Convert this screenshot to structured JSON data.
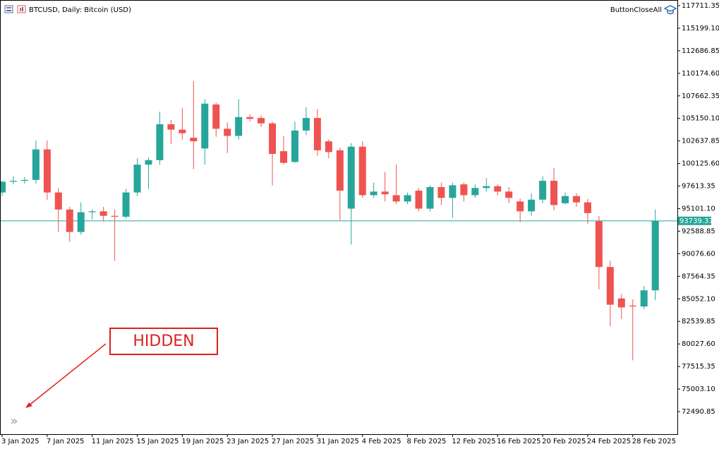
{
  "chart_data": {
    "type": "candlestick",
    "title": "BTCUSD, Daily: Bitcoin (USD)",
    "button": "ButtonCloseAll",
    "annotation": "HIDDEN",
    "scroll_marker": "»",
    "categories": [
      "3 Jan 2025",
      null,
      null,
      null,
      "7 Jan 2025",
      null,
      null,
      null,
      "11 Jan 2025",
      null,
      null,
      null,
      "15 Jan 2025",
      null,
      null,
      null,
      "19 Jan 2025",
      null,
      null,
      null,
      "23 Jan 2025",
      null,
      null,
      null,
      "27 Jan 2025",
      null,
      null,
      null,
      "31 Jan 2025",
      null,
      null,
      null,
      "4 Feb 2025",
      null,
      null,
      null,
      "8 Feb 2025",
      null,
      null,
      null,
      "12 Feb 2025",
      null,
      null,
      null,
      "16 Feb 2025",
      null,
      null,
      null,
      "20 Feb 2025",
      null,
      null,
      null,
      "24 Feb 2025",
      null,
      null,
      null,
      "28 Feb 2025",
      null,
      null
    ],
    "open": [
      96900,
      98100,
      98200,
      98300,
      101700,
      96900,
      95000,
      92500,
      94700,
      94800,
      94300,
      94200,
      96900,
      100000,
      100500,
      104500,
      103900,
      103000,
      101800,
      106700,
      104000,
      103200,
      105300,
      105200,
      104600,
      101500,
      100300,
      103800,
      105200,
      102600,
      101600,
      95100,
      102000,
      96600,
      97000,
      96600,
      95900,
      97100,
      95100,
      97500,
      96300,
      97800,
      96600,
      97400,
      97600,
      97000,
      95900,
      94800,
      96100,
      98200,
      95700,
      96500,
      95800,
      93700,
      88600,
      85100,
      84300,
      84200,
      86000
    ],
    "high": [
      98200,
      98700,
      98600,
      102700,
      102700,
      97400,
      95300,
      95800,
      95000,
      95300,
      95000,
      97300,
      100700,
      100800,
      105900,
      105000,
      106300,
      109300,
      107300,
      106900,
      104700,
      107300,
      105600,
      105500,
      104800,
      103200,
      104800,
      106400,
      106200,
      102800,
      101900,
      102400,
      102600,
      98000,
      99200,
      100000,
      96900,
      97400,
      97700,
      98000,
      98000,
      98000,
      97800,
      98500,
      97800,
      97500,
      96200,
      96800,
      98700,
      99600,
      96900,
      96800,
      96200,
      94300,
      89300,
      85600,
      85000,
      86500,
      95000
    ],
    "low": [
      96500,
      97800,
      97900,
      97900,
      96100,
      92500,
      91400,
      92200,
      93900,
      93700,
      89300,
      94000,
      96500,
      97300,
      100000,
      102300,
      102800,
      99500,
      100000,
      103100,
      101300,
      102800,
      104800,
      104200,
      97700,
      100000,
      100200,
      103300,
      101000,
      100700,
      93800,
      91100,
      96300,
      96300,
      95900,
      95600,
      95600,
      94800,
      94800,
      95500,
      94100,
      95900,
      96300,
      97000,
      96600,
      95700,
      93600,
      94300,
      95700,
      94900,
      95600,
      95300,
      93400,
      86100,
      82000,
      82800,
      78200,
      83900,
      84900
    ],
    "close": [
      98100,
      98200,
      98300,
      101700,
      96900,
      95000,
      92500,
      94700,
      94800,
      94300,
      94200,
      96900,
      100000,
      100500,
      104500,
      103900,
      103500,
      102600,
      106800,
      104000,
      103200,
      105300,
      105100,
      104600,
      101200,
      100200,
      103800,
      105200,
      101600,
      101400,
      97100,
      102000,
      96600,
      97000,
      96700,
      95900,
      96600,
      95100,
      97500,
      96300,
      97700,
      96600,
      97400,
      97600,
      97000,
      96300,
      94800,
      96100,
      98200,
      95500,
      96500,
      95800,
      94600,
      88600,
      84400,
      84100,
      84200,
      86000,
      93739
    ],
    "up_color": "#26a69a",
    "down_color": "#ef5350",
    "price_line": 93739.37,
    "ylim": [
      69977,
      118340
    ],
    "yticks": [
      72490.85,
      {
        "value": 75003.1,
        "label": "75003.10"
      },
      77515.35,
      {
        "value": 80027.6,
        "label": "80027.60"
      },
      82539.85,
      {
        "value": 85052.1,
        "label": "85052.10"
      },
      87564.35,
      {
        "value": 90076.6,
        "label": "90076.60"
      },
      92588.85,
      {
        "value": 95101.1,
        "label": "95101.10"
      },
      97613.35,
      {
        "value": 100125.6,
        "label": "100125.60"
      },
      102637.85,
      {
        "value": 105150.1,
        "label": "105150.10"
      },
      107662.35,
      {
        "value": 110174.6,
        "label": "110174.60"
      },
      112686.85,
      {
        "value": 115199.1,
        "label": "115199.10"
      },
      117711.35
    ]
  }
}
